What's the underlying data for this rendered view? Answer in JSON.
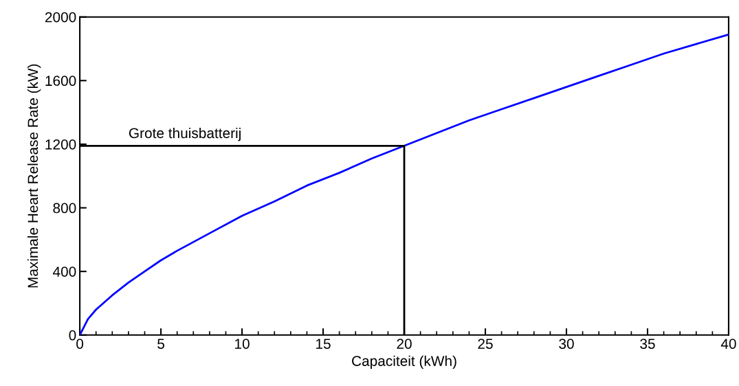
{
  "chart_data": {
    "type": "line",
    "xlabel": "Capaciteit (kWh)",
    "ylabel": "Maximale Heart Release Rate (kW)",
    "xlim": [
      0,
      40
    ],
    "xticks": [
      0,
      5,
      10,
      15,
      20,
      25,
      30,
      35,
      40
    ],
    "ylim": [
      0,
      2000
    ],
    "yticks": [
      0,
      400,
      800,
      1200,
      1600,
      2000
    ],
    "grid": false,
    "series": [
      {
        "color": "#0000ff",
        "x": [
          0,
          0.5,
          1,
          2,
          3,
          4,
          5,
          6,
          8,
          10,
          12,
          14,
          16,
          18,
          20,
          22,
          24,
          26,
          28,
          30,
          32,
          34,
          36,
          38,
          40
        ],
        "values": [
          0,
          100,
          160,
          250,
          330,
          400,
          470,
          530,
          640,
          750,
          840,
          940,
          1020,
          1110,
          1190,
          1270,
          1350,
          1420,
          1490,
          1560,
          1630,
          1700,
          1770,
          1830,
          1890
        ]
      },
      {
        "color": "#000000",
        "x": [
          0,
          20,
          20
        ],
        "values": [
          1190,
          1190,
          0
        ]
      }
    ],
    "annotations": [
      {
        "text": "Grote thuisbatterij",
        "x": 3,
        "y": 1190
      }
    ]
  }
}
